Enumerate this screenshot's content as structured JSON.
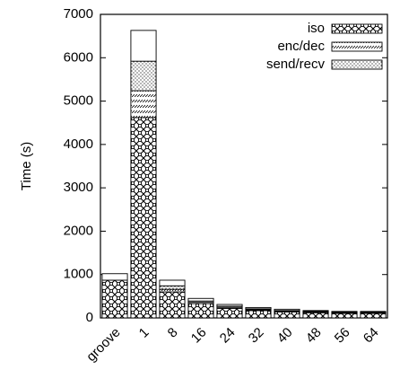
{
  "chart_data": {
    "type": "stacked_bar",
    "y_label": "Time (s)",
    "categories": [
      "groove",
      "1",
      "8",
      "16",
      "24",
      "32",
      "40",
      "48",
      "56",
      "64"
    ],
    "series": [
      {
        "name": "iso",
        "pattern": "crosshatch",
        "color": "#000000",
        "values": [
          870,
          4620,
          600,
          330,
          220,
          170,
          140,
          120,
          105,
          105
        ]
      },
      {
        "name": "enc/dec",
        "pattern": "dashes",
        "color": "#000000",
        "values": [
          0,
          620,
          60,
          30,
          25,
          20,
          15,
          15,
          12,
          12
        ]
      },
      {
        "name": "send/recv",
        "pattern": "dots",
        "color": "#000000",
        "values": [
          0,
          680,
          80,
          30,
          25,
          20,
          15,
          15,
          13,
          13
        ]
      },
      {
        "pattern": "none",
        "color": "#000000",
        "values": [
          150,
          710,
          130,
          60,
          40,
          30,
          30,
          20,
          20,
          20
        ]
      }
    ],
    "ylim": [
      0,
      7000
    ],
    "yticks": [
      0,
      1000,
      2000,
      3000,
      4000,
      5000,
      6000,
      7000
    ],
    "legend": "top-right"
  }
}
